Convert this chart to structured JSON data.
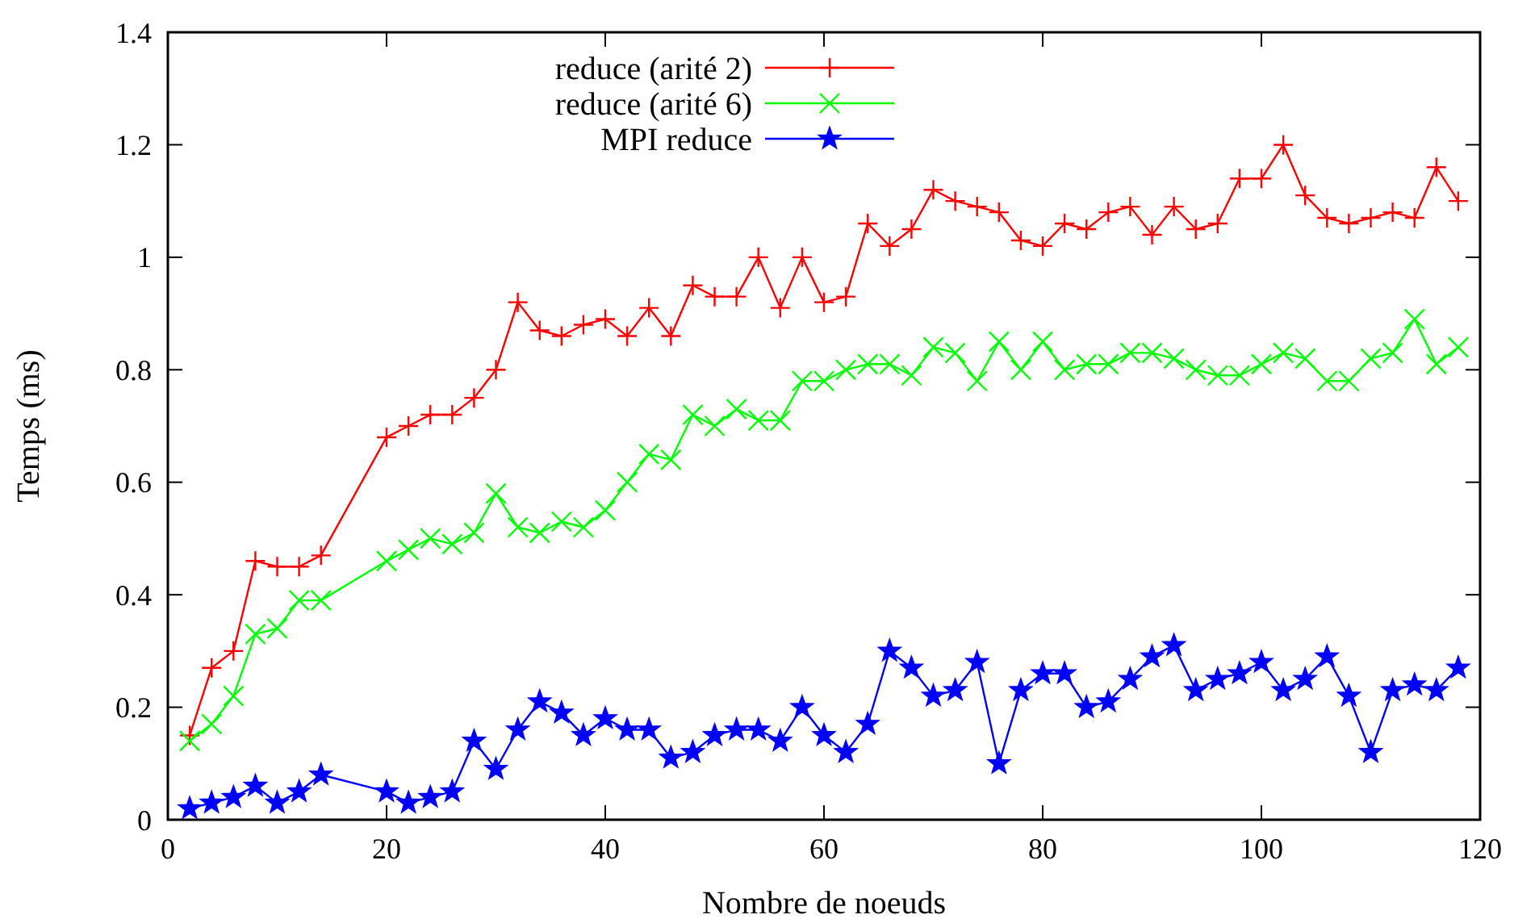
{
  "chart_data": {
    "type": "line",
    "xlabel": "Nombre de noeuds",
    "ylabel": "Temps (ms)",
    "xlim": [
      0,
      120
    ],
    "ylim": [
      0,
      1.4
    ],
    "xticks": [
      0,
      20,
      40,
      60,
      80,
      100,
      120
    ],
    "yticks": [
      0,
      0.2,
      0.4,
      0.6,
      0.8,
      1,
      1.2,
      1.4
    ],
    "grid": false,
    "legend": "top left",
    "line_style": "solid",
    "x": [
      2,
      4,
      6,
      8,
      10,
      12,
      14,
      20,
      22,
      24,
      26,
      28,
      30,
      32,
      34,
      36,
      38,
      40,
      42,
      44,
      46,
      48,
      50,
      52,
      54,
      56,
      58,
      60,
      62,
      64,
      66,
      68,
      70,
      72,
      74,
      76,
      78,
      80,
      82,
      84,
      86,
      88,
      90,
      92,
      94,
      96,
      98,
      100,
      102,
      104,
      106,
      108,
      110,
      112,
      114,
      116,
      118
    ],
    "series": [
      {
        "name": "reduce (arité 2)",
        "color": "#ff0000",
        "marker": "plus",
        "values": [
          0.15,
          0.27,
          0.3,
          0.46,
          0.45,
          0.45,
          0.47,
          0.68,
          0.7,
          0.72,
          0.72,
          0.75,
          0.8,
          0.92,
          0.87,
          0.86,
          0.88,
          0.89,
          0.86,
          0.91,
          0.86,
          0.95,
          0.93,
          0.93,
          1.0,
          0.91,
          1.0,
          0.92,
          0.93,
          1.06,
          1.02,
          1.05,
          1.12,
          1.1,
          1.09,
          1.08,
          1.03,
          1.02,
          1.06,
          1.05,
          1.08,
          1.09,
          1.04,
          1.09,
          1.05,
          1.06,
          1.14,
          1.14,
          1.2,
          1.11,
          1.07,
          1.06,
          1.07,
          1.08,
          1.07,
          1.16,
          1.1
        ]
      },
      {
        "name": "reduce (arité 6)",
        "color": "#00ff00",
        "marker": "cross",
        "values": [
          0.14,
          0.17,
          0.22,
          0.33,
          0.34,
          0.39,
          0.39,
          0.46,
          0.48,
          0.5,
          0.49,
          0.51,
          0.58,
          0.52,
          0.51,
          0.53,
          0.52,
          0.55,
          0.6,
          0.65,
          0.64,
          0.72,
          0.7,
          0.73,
          0.71,
          0.71,
          0.78,
          0.78,
          0.8,
          0.81,
          0.81,
          0.79,
          0.84,
          0.83,
          0.78,
          0.85,
          0.8,
          0.85,
          0.8,
          0.81,
          0.81,
          0.83,
          0.83,
          0.82,
          0.8,
          0.79,
          0.79,
          0.81,
          0.83,
          0.82,
          0.78,
          0.78,
          0.82,
          0.83,
          0.89,
          0.81,
          0.84
        ]
      },
      {
        "name": "MPI reduce",
        "color": "#0000ff",
        "marker": "star",
        "values": [
          0.02,
          0.03,
          0.04,
          0.06,
          0.03,
          0.05,
          0.08,
          0.05,
          0.03,
          0.04,
          0.05,
          0.14,
          0.09,
          0.16,
          0.21,
          0.19,
          0.15,
          0.18,
          0.16,
          0.16,
          0.11,
          0.12,
          0.15,
          0.16,
          0.16,
          0.14,
          0.2,
          0.15,
          0.12,
          0.17,
          0.3,
          0.27,
          0.22,
          0.23,
          0.28,
          0.1,
          0.23,
          0.26,
          0.26,
          0.2,
          0.21,
          0.25,
          0.29,
          0.31,
          0.23,
          0.25,
          0.26,
          0.28,
          0.23,
          0.25,
          0.29,
          0.22,
          0.12,
          0.23,
          0.24,
          0.23,
          0.27
        ]
      }
    ]
  }
}
